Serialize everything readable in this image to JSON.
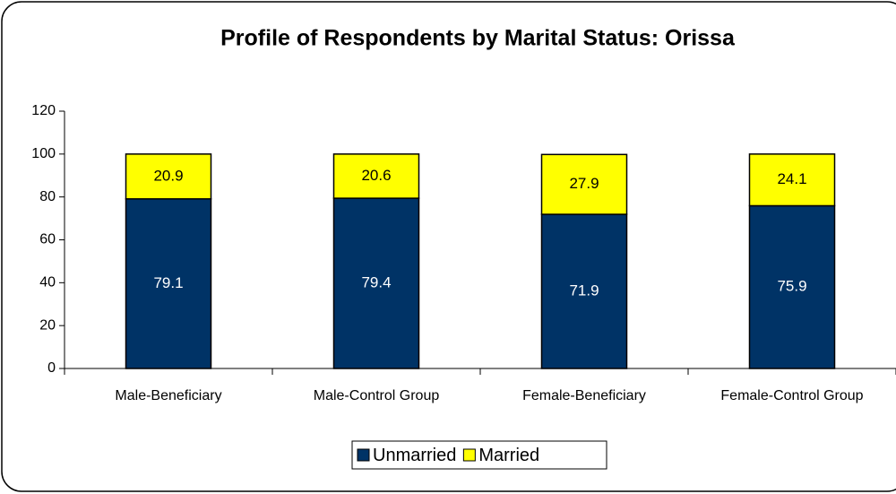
{
  "chart_data": {
    "type": "stacked_bar",
    "title": "Profile of Respondents by Marital Status: Orissa",
    "categories": [
      "Male-Beneficiary",
      "Male-Control Group",
      "Female-Beneficiary",
      "Female-Control Group"
    ],
    "series": [
      {
        "name": "Unmarried",
        "color": "#003366",
        "values": [
          79.1,
          79.4,
          71.9,
          75.9
        ]
      },
      {
        "name": "Married",
        "color": "#ffff00",
        "values": [
          20.9,
          20.6,
          27.9,
          24.1
        ]
      }
    ],
    "ylim": [
      0,
      120
    ],
    "yticks": [
      0,
      20,
      40,
      60,
      80,
      100,
      120
    ],
    "legend": "bottom"
  }
}
